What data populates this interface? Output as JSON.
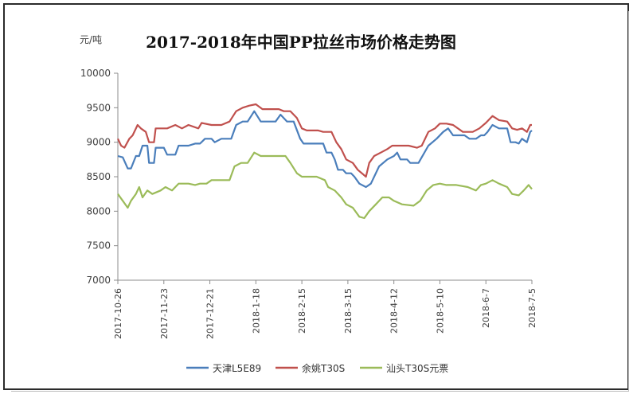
{
  "chart_data": {
    "type": "line",
    "title": "2017-2018年中国PP拉丝市场价格走势图",
    "ylabel": "元/吨",
    "ylim": [
      7000,
      10000
    ],
    "yticks": [
      7000,
      7500,
      8000,
      8500,
      9000,
      9500,
      10000
    ],
    "xlim": [
      "2017-10-26",
      "2018-07-05"
    ],
    "xticks": [
      "2017-10-26",
      "2017-11-23",
      "2017-12-21",
      "2018-1-18",
      "2018-2-15",
      "2018-3-15",
      "2018-4-12",
      "2018-5-10",
      "2018-6-7",
      "2018-7-5"
    ],
    "legend_position": "bottom",
    "grid": false,
    "series": [
      {
        "name": "天津L5E89",
        "color": "#4a7ebb",
        "points": [
          [
            "2017-10-26",
            8800
          ],
          [
            "2017-10-29",
            8780
          ],
          [
            "2017-11-01",
            8620
          ],
          [
            "2017-11-03",
            8620
          ],
          [
            "2017-11-06",
            8800
          ],
          [
            "2017-11-08",
            8800
          ],
          [
            "2017-11-10",
            8950
          ],
          [
            "2017-11-13",
            8950
          ],
          [
            "2017-11-14",
            8700
          ],
          [
            "2017-11-17",
            8700
          ],
          [
            "2017-11-18",
            8920
          ],
          [
            "2017-11-23",
            8920
          ],
          [
            "2017-11-25",
            8820
          ],
          [
            "2017-11-30",
            8820
          ],
          [
            "2017-12-02",
            8950
          ],
          [
            "2017-12-08",
            8950
          ],
          [
            "2017-12-12",
            8980
          ],
          [
            "2017-12-15",
            8980
          ],
          [
            "2017-12-18",
            9050
          ],
          [
            "2017-12-22",
            9050
          ],
          [
            "2017-12-24",
            9000
          ],
          [
            "2017-12-28",
            9050
          ],
          [
            "2018-01-03",
            9050
          ],
          [
            "2018-01-06",
            9250
          ],
          [
            "2018-01-10",
            9300
          ],
          [
            "2018-01-13",
            9300
          ],
          [
            "2018-01-17",
            9450
          ],
          [
            "2018-01-21",
            9300
          ],
          [
            "2018-01-30",
            9300
          ],
          [
            "2018-02-02",
            9400
          ],
          [
            "2018-02-06",
            9300
          ],
          [
            "2018-02-10",
            9300
          ],
          [
            "2018-02-14",
            9050
          ],
          [
            "2018-02-16",
            8980
          ],
          [
            "2018-02-28",
            8980
          ],
          [
            "2018-03-02",
            8850
          ],
          [
            "2018-03-05",
            8850
          ],
          [
            "2018-03-07",
            8750
          ],
          [
            "2018-03-09",
            8600
          ],
          [
            "2018-03-12",
            8600
          ],
          [
            "2018-03-14",
            8550
          ],
          [
            "2018-03-17",
            8550
          ],
          [
            "2018-03-19",
            8500
          ],
          [
            "2018-03-22",
            8400
          ],
          [
            "2018-03-26",
            8350
          ],
          [
            "2018-03-29",
            8400
          ],
          [
            "2018-04-03",
            8650
          ],
          [
            "2018-04-08",
            8750
          ],
          [
            "2018-04-12",
            8800
          ],
          [
            "2018-04-14",
            8850
          ],
          [
            "2018-04-16",
            8750
          ],
          [
            "2018-04-20",
            8750
          ],
          [
            "2018-04-22",
            8700
          ],
          [
            "2018-04-27",
            8700
          ],
          [
            "2018-05-03",
            8950
          ],
          [
            "2018-05-08",
            9050
          ],
          [
            "2018-05-12",
            9150
          ],
          [
            "2018-05-15",
            9200
          ],
          [
            "2018-05-18",
            9100
          ],
          [
            "2018-05-25",
            9100
          ],
          [
            "2018-05-28",
            9050
          ],
          [
            "2018-06-01",
            9050
          ],
          [
            "2018-06-04",
            9100
          ],
          [
            "2018-06-06",
            9100
          ],
          [
            "2018-06-08",
            9150
          ],
          [
            "2018-06-11",
            9250
          ],
          [
            "2018-06-15",
            9200
          ],
          [
            "2018-06-20",
            9200
          ],
          [
            "2018-06-22",
            9000
          ],
          [
            "2018-06-25",
            9000
          ],
          [
            "2018-06-27",
            8980
          ],
          [
            "2018-06-29",
            9050
          ],
          [
            "2018-07-02",
            9000
          ],
          [
            "2018-07-04",
            9150
          ],
          [
            "2018-07-05",
            9170
          ]
        ]
      },
      {
        "name": "余姚T30S",
        "color": "#c0504d",
        "points": [
          [
            "2017-10-26",
            9050
          ],
          [
            "2017-10-28",
            8950
          ],
          [
            "2017-10-30",
            8920
          ],
          [
            "2017-11-02",
            9050
          ],
          [
            "2017-11-04",
            9100
          ],
          [
            "2017-11-07",
            9250
          ],
          [
            "2017-11-09",
            9200
          ],
          [
            "2017-11-12",
            9150
          ],
          [
            "2017-11-14",
            9000
          ],
          [
            "2017-11-17",
            9000
          ],
          [
            "2017-11-18",
            9200
          ],
          [
            "2017-11-21",
            9200
          ],
          [
            "2017-11-25",
            9200
          ],
          [
            "2017-11-30",
            9250
          ],
          [
            "2017-12-04",
            9200
          ],
          [
            "2017-12-08",
            9250
          ],
          [
            "2017-12-14",
            9200
          ],
          [
            "2017-12-16",
            9280
          ],
          [
            "2017-12-22",
            9250
          ],
          [
            "2017-12-28",
            9250
          ],
          [
            "2018-01-02",
            9300
          ],
          [
            "2018-01-06",
            9450
          ],
          [
            "2018-01-10",
            9500
          ],
          [
            "2018-01-14",
            9530
          ],
          [
            "2018-01-18",
            9550
          ],
          [
            "2018-01-22",
            9480
          ],
          [
            "2018-01-27",
            9480
          ],
          [
            "2018-02-01",
            9480
          ],
          [
            "2018-02-04",
            9450
          ],
          [
            "2018-02-08",
            9450
          ],
          [
            "2018-02-12",
            9350
          ],
          [
            "2018-02-15",
            9200
          ],
          [
            "2018-02-18",
            9170
          ],
          [
            "2018-02-25",
            9170
          ],
          [
            "2018-02-28",
            9150
          ],
          [
            "2018-03-05",
            9150
          ],
          [
            "2018-03-08",
            9000
          ],
          [
            "2018-03-11",
            8900
          ],
          [
            "2018-03-14",
            8750
          ],
          [
            "2018-03-18",
            8700
          ],
          [
            "2018-03-21",
            8600
          ],
          [
            "2018-03-26",
            8500
          ],
          [
            "2018-03-28",
            8700
          ],
          [
            "2018-03-31",
            8800
          ],
          [
            "2018-04-04",
            8850
          ],
          [
            "2018-04-08",
            8900
          ],
          [
            "2018-04-11",
            8950
          ],
          [
            "2018-04-16",
            8950
          ],
          [
            "2018-04-21",
            8950
          ],
          [
            "2018-04-26",
            8920
          ],
          [
            "2018-04-29",
            8950
          ],
          [
            "2018-05-03",
            9150
          ],
          [
            "2018-05-07",
            9200
          ],
          [
            "2018-05-10",
            9270
          ],
          [
            "2018-05-14",
            9270
          ],
          [
            "2018-05-18",
            9250
          ],
          [
            "2018-05-24",
            9150
          ],
          [
            "2018-05-30",
            9150
          ],
          [
            "2018-06-03",
            9200
          ],
          [
            "2018-06-07",
            9280
          ],
          [
            "2018-06-11",
            9380
          ],
          [
            "2018-06-15",
            9320
          ],
          [
            "2018-06-20",
            9300
          ],
          [
            "2018-06-23",
            9200
          ],
          [
            "2018-06-26",
            9180
          ],
          [
            "2018-06-29",
            9200
          ],
          [
            "2018-07-02",
            9150
          ],
          [
            "2018-07-04",
            9250
          ],
          [
            "2018-07-05",
            9250
          ]
        ]
      },
      {
        "name": "汕头T30S元票",
        "color": "#9bbb59",
        "points": [
          [
            "2017-10-26",
            8250
          ],
          [
            "2017-10-29",
            8150
          ],
          [
            "2017-11-01",
            8050
          ],
          [
            "2017-11-03",
            8150
          ],
          [
            "2017-11-06",
            8250
          ],
          [
            "2017-11-08",
            8350
          ],
          [
            "2017-11-10",
            8200
          ],
          [
            "2017-11-13",
            8300
          ],
          [
            "2017-11-16",
            8250
          ],
          [
            "2017-11-21",
            8300
          ],
          [
            "2017-11-24",
            8350
          ],
          [
            "2017-11-28",
            8300
          ],
          [
            "2017-12-02",
            8400
          ],
          [
            "2017-12-08",
            8400
          ],
          [
            "2017-12-12",
            8380
          ],
          [
            "2017-12-15",
            8400
          ],
          [
            "2017-12-19",
            8400
          ],
          [
            "2017-12-22",
            8450
          ],
          [
            "2017-12-28",
            8450
          ],
          [
            "2018-01-02",
            8450
          ],
          [
            "2018-01-05",
            8650
          ],
          [
            "2018-01-09",
            8700
          ],
          [
            "2018-01-13",
            8700
          ],
          [
            "2018-01-17",
            8850
          ],
          [
            "2018-01-21",
            8800
          ],
          [
            "2018-01-27",
            8800
          ],
          [
            "2018-02-02",
            8800
          ],
          [
            "2018-02-05",
            8800
          ],
          [
            "2018-02-08",
            8700
          ],
          [
            "2018-02-12",
            8550
          ],
          [
            "2018-02-15",
            8500
          ],
          [
            "2018-02-24",
            8500
          ],
          [
            "2018-03-01",
            8450
          ],
          [
            "2018-03-03",
            8350
          ],
          [
            "2018-03-07",
            8300
          ],
          [
            "2018-03-11",
            8200
          ],
          [
            "2018-03-14",
            8100
          ],
          [
            "2018-03-18",
            8050
          ],
          [
            "2018-03-22",
            7920
          ],
          [
            "2018-03-25",
            7900
          ],
          [
            "2018-03-28",
            8000
          ],
          [
            "2018-04-01",
            8100
          ],
          [
            "2018-04-05",
            8200
          ],
          [
            "2018-04-09",
            8200
          ],
          [
            "2018-04-12",
            8150
          ],
          [
            "2018-04-17",
            8100
          ],
          [
            "2018-04-24",
            8080
          ],
          [
            "2018-04-28",
            8150
          ],
          [
            "2018-05-02",
            8300
          ],
          [
            "2018-05-06",
            8380
          ],
          [
            "2018-05-10",
            8400
          ],
          [
            "2018-05-14",
            8380
          ],
          [
            "2018-05-20",
            8380
          ],
          [
            "2018-05-27",
            8350
          ],
          [
            "2018-06-01",
            8300
          ],
          [
            "2018-06-04",
            8380
          ],
          [
            "2018-06-07",
            8400
          ],
          [
            "2018-06-11",
            8450
          ],
          [
            "2018-06-15",
            8400
          ],
          [
            "2018-06-20",
            8350
          ],
          [
            "2018-06-23",
            8250
          ],
          [
            "2018-06-27",
            8230
          ],
          [
            "2018-06-30",
            8300
          ],
          [
            "2018-07-03",
            8380
          ],
          [
            "2018-07-05",
            8320
          ]
        ]
      }
    ]
  }
}
